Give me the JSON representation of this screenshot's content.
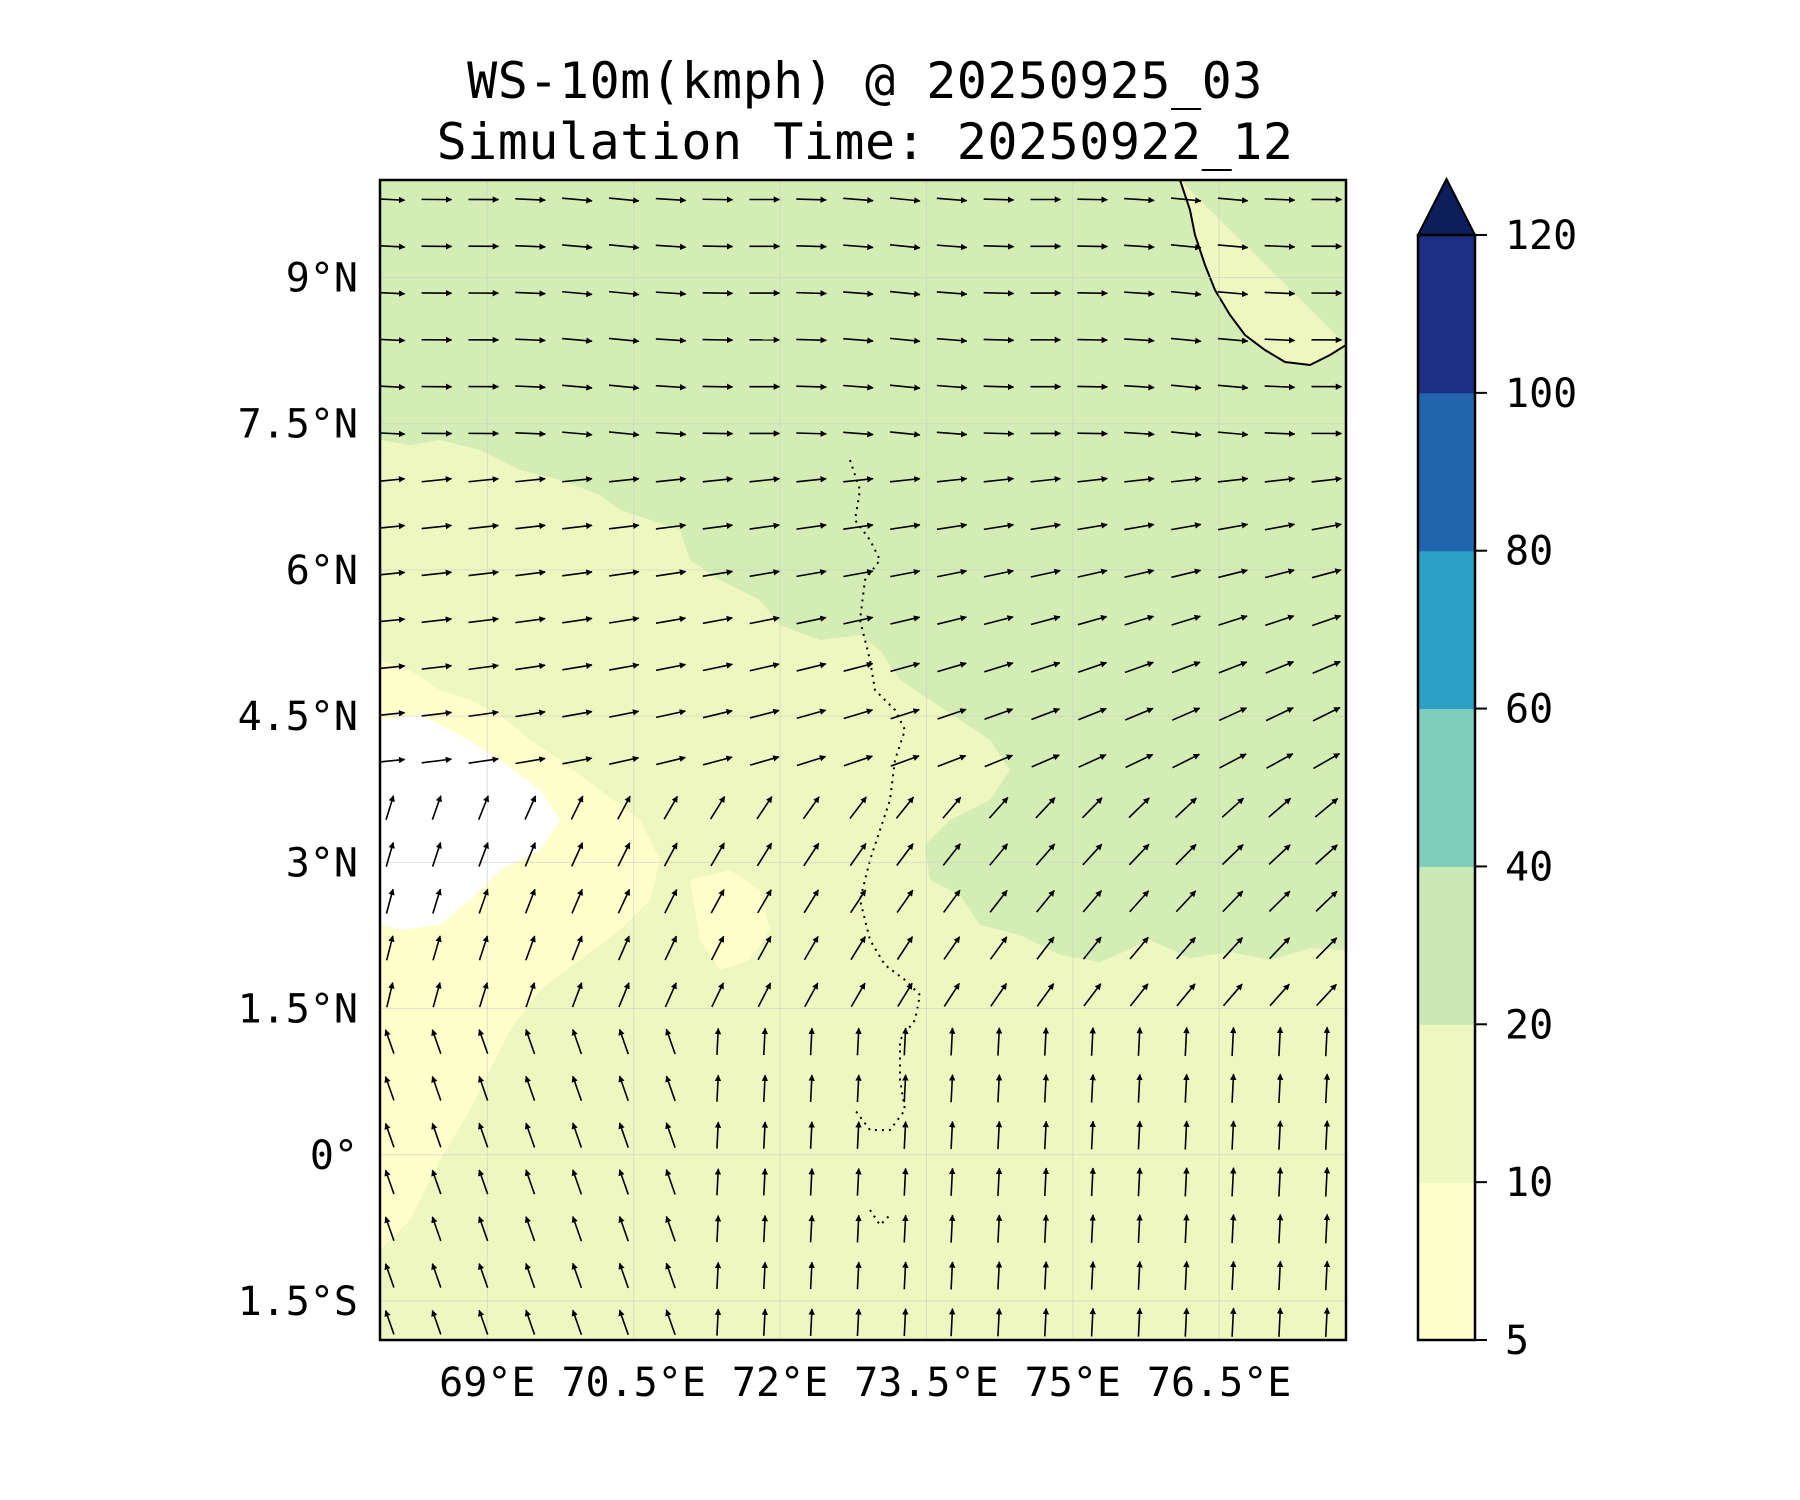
{
  "title": {
    "line1": "WS-10m(kmph) @ 20250925_03",
    "line2": "Simulation Time: 20250922_12"
  },
  "map": {
    "type": "wind-speed-contour-with-vectors",
    "lon_range": [
      67.9,
      77.8
    ],
    "lat_range": [
      -1.9,
      10.0
    ],
    "lat_ticks": [
      {
        "value": 9.0,
        "label": "9°N"
      },
      {
        "value": 7.5,
        "label": "7.5°N"
      },
      {
        "value": 6.0,
        "label": "6°N"
      },
      {
        "value": 4.5,
        "label": "4.5°N"
      },
      {
        "value": 3.0,
        "label": "3°N"
      },
      {
        "value": 1.5,
        "label": "1.5°N"
      },
      {
        "value": 0.0,
        "label": "0°"
      },
      {
        "value": -1.5,
        "label": "1.5°S"
      }
    ],
    "lon_ticks": [
      {
        "value": 69.0,
        "label": "69°E"
      },
      {
        "value": 70.5,
        "label": "70.5°E"
      },
      {
        "value": 72.0,
        "label": "72°E"
      },
      {
        "value": 73.5,
        "label": "73.5°E"
      },
      {
        "value": 75.0,
        "label": "75°E"
      },
      {
        "value": 76.5,
        "label": "76.5°E"
      }
    ],
    "gridlines": true,
    "colors": {
      "lt10": "#ffffcc",
      "b10_20": "#eef7bf",
      "b20_40": "#d3edb4",
      "white_gap": "#ffffff"
    }
  },
  "colorbar": {
    "levels": [
      5,
      10,
      20,
      40,
      60,
      80,
      100,
      120
    ],
    "labels": [
      "5",
      "10",
      "20",
      "40",
      "60",
      "80",
      "100",
      "120"
    ],
    "colors": [
      "#ffffcc",
      "#eef7bf",
      "#cbe9b5",
      "#7fcdbb",
      "#2c9fc6",
      "#2165ae",
      "#1d2e83"
    ],
    "extend_color": "#0c1f5b",
    "extend": "max"
  }
}
